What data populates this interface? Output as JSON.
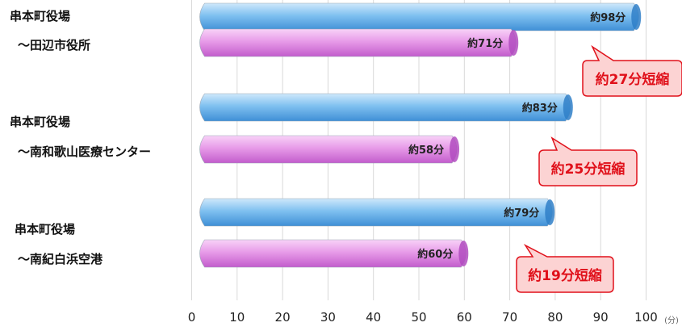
{
  "chart_data": {
    "type": "bar",
    "orientation": "horizontal",
    "categories": [
      {
        "line1": "串本町役場",
        "line2": "～田辺市役所"
      },
      {
        "line1": "串本町役場",
        "line2": "～南和歌山医療センター"
      },
      {
        "line1": "串本町役場",
        "line2": "～南紀白浜空港"
      }
    ],
    "series": [
      {
        "values": [
          98,
          83,
          79
        ],
        "labels": [
          "約98分",
          "約83分",
          "約79分"
        ],
        "color": "#6fb4ea"
      },
      {
        "values": [
          71,
          58,
          60
        ],
        "labels": [
          "約71分",
          "約58分",
          "約60分"
        ],
        "color": "#e68ae6"
      }
    ],
    "annotations": [
      "約27分短縮",
      "約25分短縮",
      "約19分短縮"
    ],
    "x_ticks": [
      0,
      10,
      20,
      30,
      40,
      50,
      60,
      70,
      80,
      90,
      100
    ],
    "x_unit": "(分)",
    "xlim": [
      0,
      100
    ],
    "grid": true,
    "annotation_color": "#e0101a",
    "annotation_fill": "#fcd3d3"
  }
}
